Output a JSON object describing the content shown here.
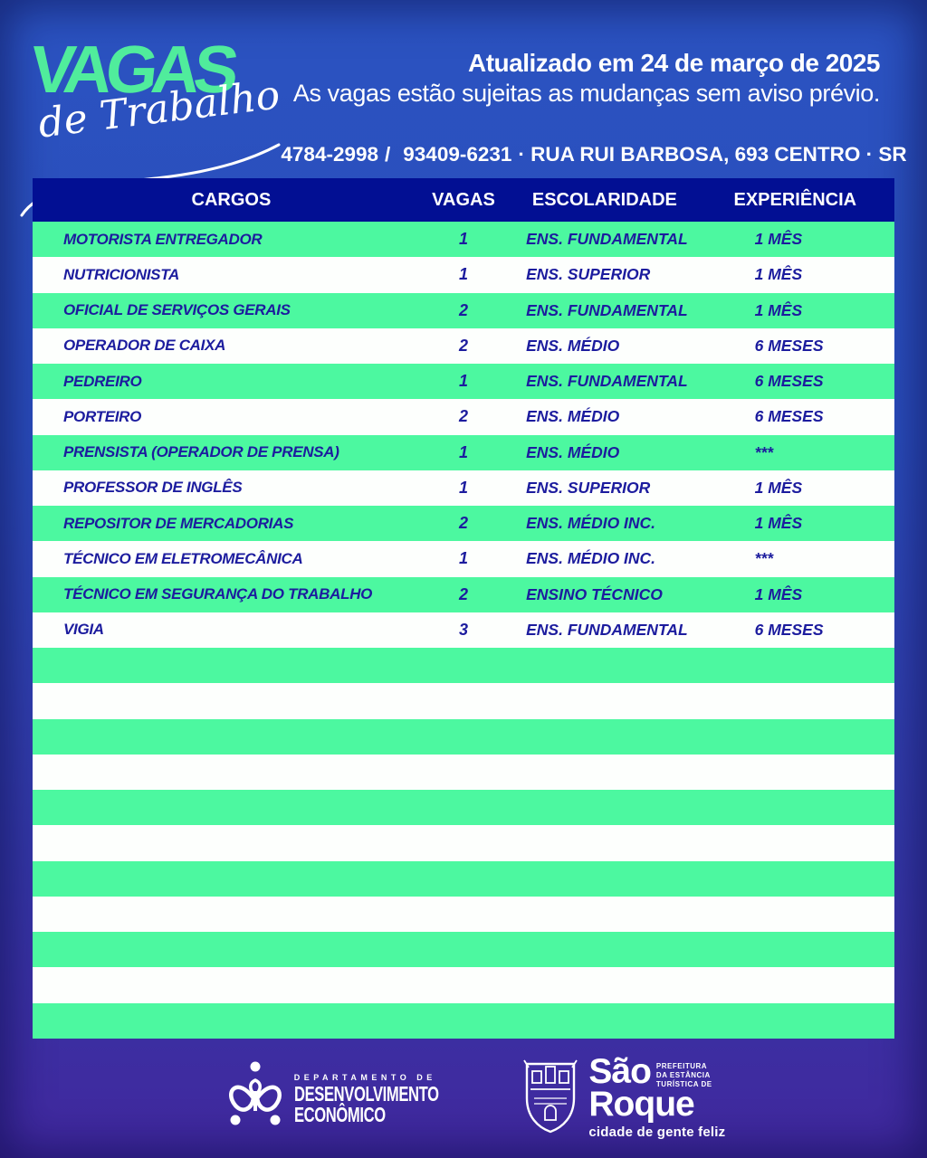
{
  "colors": {
    "background_top": "#2b53c1",
    "background_bottom": "#41289e",
    "header_navy": "#020f93",
    "stripe_green": "#4cf8a0",
    "stripe_white": "#fdfffd",
    "row_text_navy": "#1c1c9e",
    "logo_green": "#50ec9c",
    "text_white": "#ffffff"
  },
  "logo": {
    "title": "VAGAS",
    "subtitle": "de Trabalho"
  },
  "header": {
    "updated": "Atualizado em 24 de março de 2025",
    "disclaimer": "As vagas estão sujeitas as mudanças sem aviso prévio.",
    "phone_fixed": "4784-2998",
    "phone_separator": "/",
    "phone_whatsapp": "93409-6231",
    "address": "· RUA RUI BARBOSA, 693 CENTRO · SR"
  },
  "table": {
    "columns": [
      "CARGOS",
      "VAGAS",
      "ESCOLARIDADE",
      "EXPERIÊNCIA"
    ],
    "rows": [
      {
        "cargo": "MOTORISTA ENTREGADOR",
        "vagas": "1",
        "escolaridade": "ENS. FUNDAMENTAL",
        "experiencia": "1 MÊS"
      },
      {
        "cargo": "NUTRICIONISTA",
        "vagas": "1",
        "escolaridade": "ENS. SUPERIOR",
        "experiencia": "1 MÊS"
      },
      {
        "cargo": "OFICIAL DE SERVIÇOS GERAIS",
        "vagas": "2",
        "escolaridade": "ENS. FUNDAMENTAL",
        "experiencia": "1 MÊS"
      },
      {
        "cargo": "OPERADOR DE CAIXA",
        "vagas": "2",
        "escolaridade": "ENS. MÉDIO",
        "experiencia": "6 MESES"
      },
      {
        "cargo": "PEDREIRO",
        "vagas": "1",
        "escolaridade": "ENS. FUNDAMENTAL",
        "experiencia": "6 MESES"
      },
      {
        "cargo": "PORTEIRO",
        "vagas": "2",
        "escolaridade": "ENS. MÉDIO",
        "experiencia": "6 MESES"
      },
      {
        "cargo": "PRENSISTA (OPERADOR DE PRENSA)",
        "vagas": "1",
        "escolaridade": "ENS. MÉDIO",
        "experiencia": "***"
      },
      {
        "cargo": "PROFESSOR DE INGLÊS",
        "vagas": "1",
        "escolaridade": "ENS. SUPERIOR",
        "experiencia": "1 MÊS"
      },
      {
        "cargo": "REPOSITOR DE MERCADORIAS",
        "vagas": "2",
        "escolaridade": "ENS. MÉDIO INC.",
        "experiencia": "1 MÊS"
      },
      {
        "cargo": "TÉCNICO EM ELETROMECÂNICA",
        "vagas": "1",
        "escolaridade": "ENS. MÉDIO INC.",
        "experiencia": "***"
      },
      {
        "cargo": "TÉCNICO EM SEGURANÇA DO TRABALHO",
        "vagas": "2",
        "escolaridade": "ENSINO TÉCNICO",
        "experiencia": "1 MÊS"
      },
      {
        "cargo": "VIGIA",
        "vagas": "3",
        "escolaridade": "ENS. FUNDAMENTAL",
        "experiencia": "6 MESES"
      }
    ],
    "empty_row_count": 11
  },
  "footer": {
    "department": {
      "kicker": "DEPARTAMENTO DE",
      "line1": "DESENVOLVIMENTO",
      "line2": "ECONÔMICO"
    },
    "city": {
      "name_line1": "São",
      "name_line2": "Roque",
      "small_lines": [
        "PREFEITURA",
        "DA ESTÂNCIA",
        "TURÍSTICA DE"
      ],
      "tagline": "cidade de gente feliz"
    }
  }
}
